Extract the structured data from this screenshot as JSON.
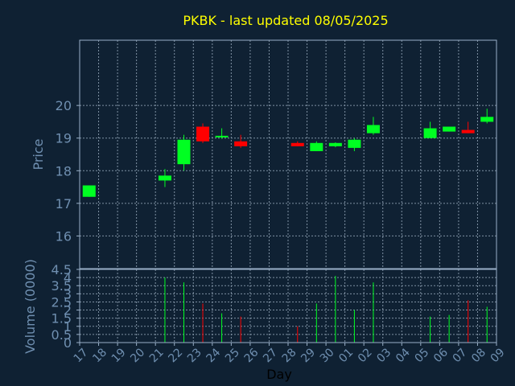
{
  "chart_data": {
    "type": "candlestick",
    "title": "PKBK - last updated 08/05/2025",
    "price_panel": {
      "ylabel": "Price",
      "ylim": [
        15,
        22
      ],
      "yticks": [
        16,
        17,
        18,
        19,
        20
      ]
    },
    "volume_panel": {
      "ylabel": "Volume (0000)",
      "ylim": [
        0,
        4.5
      ],
      "yticks": [
        0,
        0.5,
        1,
        1.5,
        2,
        2.5,
        3,
        3.5,
        4,
        4.5
      ],
      "ytick_labels": [
        "0",
        "0.5",
        "1",
        "1.5",
        "2",
        "2.5",
        "3",
        "3.5",
        "4",
        "4.5"
      ]
    },
    "xlabel": "Day",
    "xticks": [
      "17",
      "18",
      "19",
      "20",
      "21",
      "22",
      "23",
      "24",
      "25",
      "26",
      "27",
      "28",
      "29",
      "30",
      "01",
      "02",
      "03",
      "04",
      "05",
      "06",
      "07",
      "08",
      "09"
    ],
    "grid": true,
    "candles": [
      {
        "x": 0,
        "open": 17.2,
        "high": 17.55,
        "low": 17.2,
        "close": 17.55,
        "volume": 0
      },
      {
        "x": 4,
        "open": 17.7,
        "high": 18.05,
        "low": 17.5,
        "close": 17.85,
        "volume": 4.0
      },
      {
        "x": 5,
        "open": 18.2,
        "high": 19.1,
        "low": 18.0,
        "close": 18.95,
        "volume": 3.7
      },
      {
        "x": 6,
        "open": 19.35,
        "high": 19.45,
        "low": 18.85,
        "close": 18.9,
        "volume": 2.4
      },
      {
        "x": 7,
        "open": 19.03,
        "high": 19.3,
        "low": 18.98,
        "close": 19.07,
        "volume": 1.8
      },
      {
        "x": 8,
        "open": 18.9,
        "high": 19.1,
        "low": 18.7,
        "close": 18.75,
        "volume": 1.6
      },
      {
        "x": 11,
        "open": 18.85,
        "high": 18.9,
        "low": 18.75,
        "close": 18.75,
        "volume": 1.0
      },
      {
        "x": 12,
        "open": 18.6,
        "high": 18.9,
        "low": 18.6,
        "close": 18.85,
        "volume": 2.4
      },
      {
        "x": 13,
        "open": 18.75,
        "high": 18.87,
        "low": 18.72,
        "close": 18.85,
        "volume": 4.1
      },
      {
        "x": 14,
        "open": 18.7,
        "high": 19.0,
        "low": 18.6,
        "close": 18.95,
        "volume": 2.0
      },
      {
        "x": 15,
        "open": 19.15,
        "high": 19.65,
        "low": 19.1,
        "close": 19.4,
        "volume": 3.7
      },
      {
        "x": 18,
        "open": 19.0,
        "high": 19.5,
        "low": 19.0,
        "close": 19.3,
        "volume": 1.6
      },
      {
        "x": 19,
        "open": 19.2,
        "high": 19.35,
        "low": 19.2,
        "close": 19.35,
        "volume": 1.7
      },
      {
        "x": 20,
        "open": 19.25,
        "high": 19.5,
        "low": 19.15,
        "close": 19.15,
        "volume": 2.6
      },
      {
        "x": 21,
        "open": 19.5,
        "high": 19.9,
        "low": 19.45,
        "close": 19.65,
        "volume": 2.2
      }
    ]
  },
  "colors": {
    "background": "#0f2133",
    "axis": "#9ab0c8",
    "grid": "#7f91a3",
    "title": "#ffff00",
    "label": "#6f8fb0",
    "up": "#00ff22",
    "down": "#ff0000"
  }
}
